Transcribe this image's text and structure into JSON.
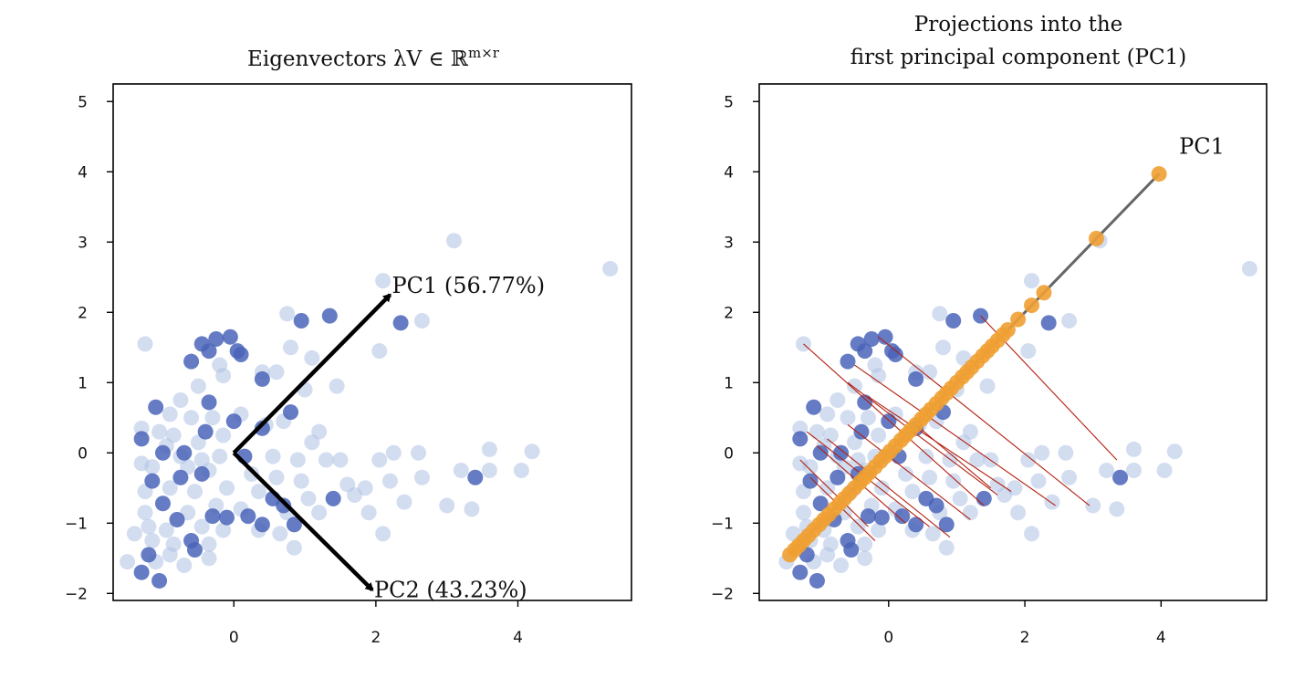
{
  "chart_data": [
    {
      "type": "scatter",
      "title": "Eigenvectors λV ∈ ℝ",
      "title_superscript": "m×r",
      "xlim": [
        -1.7,
        5.6
      ],
      "ylim": [
        -2.1,
        5.25
      ],
      "xticks": [
        0,
        2,
        4
      ],
      "yticks": [
        -2,
        -1,
        0,
        1,
        2,
        3,
        4,
        5
      ],
      "grid": false,
      "colors": {
        "light_points": "#aec1e3",
        "dark_points": "#4a64b8",
        "arrows": "#000000"
      },
      "vectors": [
        {
          "label": "PC1 (56.77%)",
          "from": [
            0,
            0
          ],
          "to": [
            2.2,
            2.25
          ]
        },
        {
          "label": "PC2 (43.23%)",
          "from": [
            0,
            0
          ],
          "to": [
            1.95,
            -1.95
          ]
        }
      ],
      "dark_points": [
        [
          -0.45,
          1.55
        ],
        [
          -0.25,
          1.62
        ],
        [
          -0.05,
          1.65
        ],
        [
          0.05,
          1.45
        ],
        [
          0.1,
          1.4
        ],
        [
          -0.6,
          1.3
        ],
        [
          -0.35,
          1.45
        ],
        [
          0.95,
          1.88
        ],
        [
          1.35,
          1.95
        ],
        [
          2.35,
          1.85
        ],
        [
          0.4,
          1.05
        ],
        [
          -1.1,
          0.65
        ],
        [
          -0.35,
          0.72
        ],
        [
          0,
          0.45
        ],
        [
          0.8,
          0.58
        ],
        [
          -1.3,
          0.2
        ],
        [
          -1.0,
          0.0
        ],
        [
          -0.7,
          0.0
        ],
        [
          -0.4,
          0.3
        ],
        [
          0.4,
          0.35
        ],
        [
          0.15,
          -0.05
        ],
        [
          -0.75,
          -0.35
        ],
        [
          -1.15,
          -0.4
        ],
        [
          -0.45,
          -0.3
        ],
        [
          -1.0,
          -0.72
        ],
        [
          -0.8,
          -0.95
        ],
        [
          -0.3,
          -0.9
        ],
        [
          -0.1,
          -0.92
        ],
        [
          0.2,
          -0.9
        ],
        [
          0.4,
          -1.02
        ],
        [
          0.85,
          -1.02
        ],
        [
          0.55,
          -0.65
        ],
        [
          0.7,
          -0.75
        ],
        [
          1.4,
          -0.65
        ],
        [
          -0.6,
          -1.25
        ],
        [
          -0.55,
          -1.38
        ],
        [
          -1.2,
          -1.45
        ],
        [
          -1.05,
          -1.82
        ],
        [
          -1.3,
          -1.7
        ],
        [
          3.4,
          -0.35
        ]
      ],
      "light_points": [
        [
          3.1,
          3.02
        ],
        [
          5.3,
          2.62
        ],
        [
          2.1,
          2.45
        ],
        [
          2.65,
          1.88
        ],
        [
          0.75,
          1.98
        ],
        [
          2.05,
          1.45
        ],
        [
          0.8,
          1.5
        ],
        [
          1.1,
          1.35
        ],
        [
          -0.2,
          1.25
        ],
        [
          0.4,
          1.15
        ],
        [
          0.6,
          1.15
        ],
        [
          1.45,
          0.95
        ],
        [
          1.0,
          0.9
        ],
        [
          -1.25,
          1.55
        ],
        [
          -0.15,
          1.1
        ],
        [
          -0.5,
          0.95
        ],
        [
          -0.75,
          0.75
        ],
        [
          -0.9,
          0.55
        ],
        [
          -0.6,
          0.5
        ],
        [
          -0.3,
          0.5
        ],
        [
          0.1,
          0.55
        ],
        [
          0.45,
          0.4
        ],
        [
          0.7,
          0.45
        ],
        [
          1.2,
          0.3
        ],
        [
          -1.05,
          0.3
        ],
        [
          -0.85,
          0.25
        ],
        [
          -0.5,
          0.15
        ],
        [
          -0.15,
          0.25
        ],
        [
          1.1,
          0.15
        ],
        [
          -1.3,
          0.35
        ],
        [
          -0.95,
          0.1
        ],
        [
          -0.75,
          -0.05
        ],
        [
          -0.45,
          -0.1
        ],
        [
          -0.2,
          -0.05
        ],
        [
          0.55,
          -0.05
        ],
        [
          0.9,
          -0.1
        ],
        [
          1.3,
          -0.1
        ],
        [
          1.5,
          -0.1
        ],
        [
          2.05,
          -0.1
        ],
        [
          2.25,
          0.0
        ],
        [
          2.6,
          0.0
        ],
        [
          3.6,
          0.05
        ],
        [
          4.2,
          0.02
        ],
        [
          -1.3,
          -0.15
        ],
        [
          -1.15,
          -0.2
        ],
        [
          -0.65,
          -0.2
        ],
        [
          -0.35,
          -0.25
        ],
        [
          0.25,
          -0.3
        ],
        [
          0.6,
          -0.35
        ],
        [
          0.95,
          -0.4
        ],
        [
          1.6,
          -0.45
        ],
        [
          1.85,
          -0.5
        ],
        [
          2.2,
          -0.4
        ],
        [
          2.65,
          -0.35
        ],
        [
          3.2,
          -0.25
        ],
        [
          3.6,
          -0.25
        ],
        [
          4.05,
          -0.25
        ],
        [
          -1.25,
          -0.55
        ],
        [
          -0.9,
          -0.5
        ],
        [
          -0.55,
          -0.55
        ],
        [
          -0.1,
          -0.5
        ],
        [
          0.35,
          -0.55
        ],
        [
          1.05,
          -0.65
        ],
        [
          1.7,
          -0.6
        ],
        [
          2.4,
          -0.7
        ],
        [
          3.0,
          -0.75
        ],
        [
          3.35,
          -0.8
        ],
        [
          -1.25,
          -0.85
        ],
        [
          -0.65,
          -0.85
        ],
        [
          -0.25,
          -0.75
        ],
        [
          0.1,
          -0.8
        ],
        [
          0.75,
          -0.85
        ],
        [
          1.2,
          -0.85
        ],
        [
          1.9,
          -0.85
        ],
        [
          -1.2,
          -1.05
        ],
        [
          -0.95,
          -1.1
        ],
        [
          -0.45,
          -1.05
        ],
        [
          -0.15,
          -1.1
        ],
        [
          0.35,
          -1.1
        ],
        [
          0.65,
          -1.15
        ],
        [
          2.1,
          -1.15
        ],
        [
          -1.4,
          -1.15
        ],
        [
          -0.85,
          -1.3
        ],
        [
          -0.35,
          -1.3
        ],
        [
          0.85,
          -1.35
        ],
        [
          -1.15,
          -1.25
        ],
        [
          -1.5,
          -1.55
        ],
        [
          -0.7,
          -1.6
        ],
        [
          -0.35,
          -1.5
        ],
        [
          -1.1,
          -1.55
        ],
        [
          -0.9,
          -1.45
        ]
      ]
    },
    {
      "type": "scatter",
      "title_line1": "Projections into the",
      "title_line2": "first principal component (PC1)",
      "xlim": [
        -1.9,
        5.55
      ],
      "ylim": [
        -2.1,
        5.25
      ],
      "xticks": [
        0,
        2,
        4
      ],
      "yticks": [
        -2,
        -1,
        0,
        1,
        2,
        3,
        4,
        5
      ],
      "grid": false,
      "colors": {
        "light_points": "#aec1e3",
        "dark_points": "#4a64b8",
        "pc_line": "#666666",
        "projections": "#f0a033",
        "residuals": "#b32010"
      },
      "pc_line": {
        "label": "PC1",
        "from": [
          -1.45,
          -1.45
        ],
        "to": [
          3.97,
          3.97
        ]
      },
      "projections": [
        -1.45,
        -1.38,
        -1.32,
        -1.25,
        -1.18,
        -1.1,
        -1.02,
        -0.95,
        -0.88,
        -0.8,
        -0.72,
        -0.65,
        -0.58,
        -0.5,
        -0.42,
        -0.35,
        -0.28,
        -0.2,
        -0.12,
        -0.05,
        0.02,
        0.1,
        0.18,
        0.25,
        0.32,
        0.4,
        0.48,
        0.55,
        0.62,
        0.7,
        0.78,
        0.85,
        0.92,
        1.0,
        1.08,
        1.15,
        1.22,
        1.3,
        1.38,
        1.45,
        1.52,
        1.6,
        1.68,
        1.75,
        1.9,
        2.1,
        2.28,
        3.05,
        3.97
      ],
      "residuals": [
        [
          [
            -1.25,
            1.55
          ],
          [
            1.4,
            -0.75
          ]
        ],
        [
          [
            -0.5,
            1.25
          ],
          [
            2.45,
            -0.75
          ]
        ],
        [
          [
            -0.15,
            1.65
          ],
          [
            2.95,
            -0.75
          ]
        ],
        [
          [
            1.35,
            1.95
          ],
          [
            3.35,
            -0.1
          ]
        ],
        [
          [
            -0.6,
            1.0
          ],
          [
            1.6,
            -0.6
          ]
        ],
        [
          [
            -0.3,
            0.8
          ],
          [
            1.8,
            -0.55
          ]
        ],
        [
          [
            -1.2,
            0.3
          ],
          [
            0.6,
            -1.05
          ]
        ],
        [
          [
            -0.9,
            0.2
          ],
          [
            0.9,
            -1.2
          ]
        ],
        [
          [
            -0.6,
            0.4
          ],
          [
            1.2,
            -0.95
          ]
        ],
        [
          [
            -1.3,
            -0.1
          ],
          [
            -0.3,
            -1.05
          ]
        ],
        [
          [
            -1.15,
            -0.35
          ],
          [
            -0.2,
            -1.25
          ]
        ],
        [
          [
            0.4,
            0.4
          ],
          [
            1.5,
            -0.5
          ]
        ],
        [
          [
            -1.05,
            0.1
          ],
          [
            0.25,
            -1.0
          ]
        ]
      ],
      "dark_points": [
        [
          -0.45,
          1.55
        ],
        [
          -0.25,
          1.62
        ],
        [
          -0.05,
          1.65
        ],
        [
          0.05,
          1.45
        ],
        [
          0.1,
          1.4
        ],
        [
          -0.6,
          1.3
        ],
        [
          -0.35,
          1.45
        ],
        [
          0.95,
          1.88
        ],
        [
          1.35,
          1.95
        ],
        [
          2.35,
          1.85
        ],
        [
          0.4,
          1.05
        ],
        [
          -1.1,
          0.65
        ],
        [
          -0.35,
          0.72
        ],
        [
          0,
          0.45
        ],
        [
          0.8,
          0.58
        ],
        [
          -1.3,
          0.2
        ],
        [
          -1.0,
          0.0
        ],
        [
          -0.7,
          0.0
        ],
        [
          -0.4,
          0.3
        ],
        [
          0.4,
          0.35
        ],
        [
          0.15,
          -0.05
        ],
        [
          -0.75,
          -0.35
        ],
        [
          -1.15,
          -0.4
        ],
        [
          -0.45,
          -0.3
        ],
        [
          -1.0,
          -0.72
        ],
        [
          -0.8,
          -0.95
        ],
        [
          -0.3,
          -0.9
        ],
        [
          -0.1,
          -0.92
        ],
        [
          0.2,
          -0.9
        ],
        [
          0.4,
          -1.02
        ],
        [
          0.85,
          -1.02
        ],
        [
          0.55,
          -0.65
        ],
        [
          0.7,
          -0.75
        ],
        [
          1.4,
          -0.65
        ],
        [
          -0.6,
          -1.25
        ],
        [
          -0.55,
          -1.38
        ],
        [
          -1.2,
          -1.45
        ],
        [
          -1.05,
          -1.82
        ],
        [
          -1.3,
          -1.7
        ],
        [
          3.4,
          -0.35
        ]
      ],
      "light_points": [
        [
          3.1,
          3.02
        ],
        [
          5.3,
          2.62
        ],
        [
          2.1,
          2.45
        ],
        [
          2.65,
          1.88
        ],
        [
          0.75,
          1.98
        ],
        [
          2.05,
          1.45
        ],
        [
          0.8,
          1.5
        ],
        [
          1.1,
          1.35
        ],
        [
          -0.2,
          1.25
        ],
        [
          0.4,
          1.15
        ],
        [
          0.6,
          1.15
        ],
        [
          1.45,
          0.95
        ],
        [
          1.0,
          0.9
        ],
        [
          -1.25,
          1.55
        ],
        [
          -0.15,
          1.1
        ],
        [
          -0.5,
          0.95
        ],
        [
          -0.75,
          0.75
        ],
        [
          -0.9,
          0.55
        ],
        [
          -0.6,
          0.5
        ],
        [
          -0.3,
          0.5
        ],
        [
          0.1,
          0.55
        ],
        [
          0.45,
          0.4
        ],
        [
          0.7,
          0.45
        ],
        [
          1.2,
          0.3
        ],
        [
          -1.05,
          0.3
        ],
        [
          -0.85,
          0.25
        ],
        [
          -0.5,
          0.15
        ],
        [
          -0.15,
          0.25
        ],
        [
          1.1,
          0.15
        ],
        [
          -1.3,
          0.35
        ],
        [
          -0.95,
          0.1
        ],
        [
          -0.75,
          -0.05
        ],
        [
          -0.45,
          -0.1
        ],
        [
          -0.2,
          -0.05
        ],
        [
          0.55,
          -0.05
        ],
        [
          0.9,
          -0.1
        ],
        [
          1.3,
          -0.1
        ],
        [
          1.5,
          -0.1
        ],
        [
          2.05,
          -0.1
        ],
        [
          2.25,
          0.0
        ],
        [
          2.6,
          0.0
        ],
        [
          3.6,
          0.05
        ],
        [
          4.2,
          0.02
        ],
        [
          -1.3,
          -0.15
        ],
        [
          -1.15,
          -0.2
        ],
        [
          -0.65,
          -0.2
        ],
        [
          -0.35,
          -0.25
        ],
        [
          0.25,
          -0.3
        ],
        [
          0.6,
          -0.35
        ],
        [
          0.95,
          -0.4
        ],
        [
          1.6,
          -0.45
        ],
        [
          1.85,
          -0.5
        ],
        [
          2.2,
          -0.4
        ],
        [
          2.65,
          -0.35
        ],
        [
          3.2,
          -0.25
        ],
        [
          3.6,
          -0.25
        ],
        [
          4.05,
          -0.25
        ],
        [
          -1.25,
          -0.55
        ],
        [
          -0.9,
          -0.5
        ],
        [
          -0.55,
          -0.55
        ],
        [
          -0.1,
          -0.5
        ],
        [
          0.35,
          -0.55
        ],
        [
          1.05,
          -0.65
        ],
        [
          1.7,
          -0.6
        ],
        [
          2.4,
          -0.7
        ],
        [
          3.0,
          -0.75
        ],
        [
          3.35,
          -0.8
        ],
        [
          -1.25,
          -0.85
        ],
        [
          -0.65,
          -0.85
        ],
        [
          -0.25,
          -0.75
        ],
        [
          0.1,
          -0.8
        ],
        [
          0.75,
          -0.85
        ],
        [
          1.2,
          -0.85
        ],
        [
          1.9,
          -0.85
        ],
        [
          -1.2,
          -1.05
        ],
        [
          -0.95,
          -1.1
        ],
        [
          -0.45,
          -1.05
        ],
        [
          -0.15,
          -1.1
        ],
        [
          0.35,
          -1.1
        ],
        [
          0.65,
          -1.15
        ],
        [
          2.1,
          -1.15
        ],
        [
          -1.4,
          -1.15
        ],
        [
          -0.85,
          -1.3
        ],
        [
          -0.35,
          -1.3
        ],
        [
          0.85,
          -1.35
        ],
        [
          -1.15,
          -1.25
        ],
        [
          -1.5,
          -1.55
        ],
        [
          -0.7,
          -1.6
        ],
        [
          -0.35,
          -1.5
        ],
        [
          -1.1,
          -1.55
        ],
        [
          -0.9,
          -1.45
        ]
      ]
    }
  ]
}
